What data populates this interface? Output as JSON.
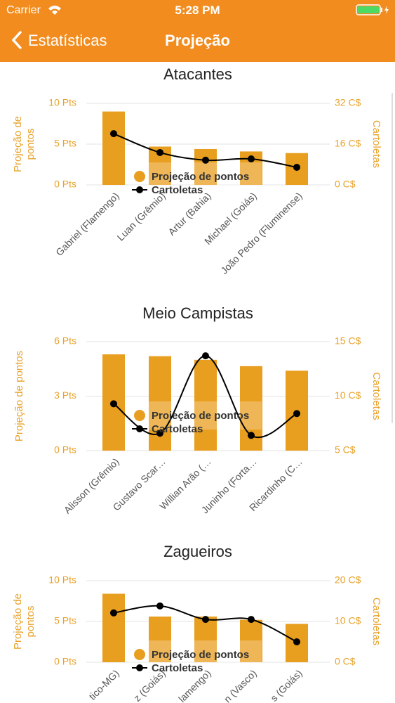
{
  "status_bar": {
    "carrier": "Carrier",
    "time": "5:28 PM"
  },
  "nav": {
    "back": "Estatísticas",
    "title": "Projeção"
  },
  "chart_data": [
    {
      "type": "bar-line",
      "title": "Atacantes",
      "categories": [
        "Gabriel (Flamengo)",
        "Luan (Grêmio)",
        "Artur (Bahia)",
        "Michael (Goiás)",
        "João Pedro (Fluminense)"
      ],
      "series": [
        {
          "name": "Projeção de pontos",
          "color": "#e89e1f",
          "values": [
            9.0,
            4.7,
            4.4,
            4.1,
            3.9
          ]
        },
        {
          "name": "Cartoletas",
          "color": "#000000",
          "axis": "y2",
          "values": [
            20.1,
            12.7,
            9.7,
            10.2,
            6.9
          ]
        }
      ],
      "y_label": "Projeção de pontos",
      "y2_label": "Cartoletas",
      "ylim": [
        0,
        10
      ],
      "yticks": [
        {
          "value": 0,
          "label": "0 Pts"
        },
        {
          "value": 5,
          "label": "5 Pts"
        },
        {
          "value": 10,
          "label": "10 Pts"
        }
      ],
      "y2lim": [
        0,
        32
      ],
      "y2ticks": [
        {
          "value": 0,
          "label": "0 C$"
        },
        {
          "value": 16,
          "label": "16 C$"
        },
        {
          "value": 32,
          "label": "32 C$"
        }
      ],
      "grid": true
    },
    {
      "type": "bar-line",
      "title": "Meio Campistas",
      "categories": [
        "Alisson (Grêmio)",
        "Gustavo Scar…",
        "Willian Arão (…",
        "Juninho (Forta…",
        "Ricardinho (C…"
      ],
      "series": [
        {
          "name": "Projeção de pontos",
          "color": "#e89e1f",
          "values": [
            5.3,
            5.2,
            5.0,
            4.65,
            4.4
          ]
        },
        {
          "name": "Cartoletas",
          "color": "#000000",
          "axis": "y2",
          "values": [
            9.3,
            6.6,
            13.7,
            6.4,
            8.4
          ]
        }
      ],
      "y_label": "Projeção de pontos",
      "y2_label": "Cartoletas",
      "ylim": [
        0,
        6
      ],
      "yticks": [
        {
          "value": 0,
          "label": "0 Pts"
        },
        {
          "value": 3,
          "label": "3 Pts"
        },
        {
          "value": 6,
          "label": "6 Pts"
        }
      ],
      "y2lim": [
        5,
        15
      ],
      "y2ticks": [
        {
          "value": 5,
          "label": "5 C$"
        },
        {
          "value": 10,
          "label": "10 C$"
        },
        {
          "value": 15,
          "label": "15 C$"
        }
      ],
      "grid": true
    },
    {
      "type": "bar-line",
      "title": "Zagueiros",
      "categories": [
        "tico-MG)",
        "z (Goiás)",
        "lamengo)",
        "n (Vasco)",
        "s (Goiás)"
      ],
      "series": [
        {
          "name": "Projeção de pontos",
          "color": "#e89e1f",
          "values": [
            8.4,
            5.6,
            5.6,
            5.2,
            4.7
          ]
        },
        {
          "name": "Cartoletas",
          "color": "#000000",
          "axis": "y2",
          "values": [
            12.1,
            13.8,
            10.5,
            10.5,
            5.0
          ]
        }
      ],
      "y_label": "Projeção de pontos",
      "y2_label": "Cartoletas",
      "ylim": [
        0,
        10
      ],
      "yticks": [
        {
          "value": 0,
          "label": "0 Pts"
        },
        {
          "value": 5,
          "label": "5 Pts"
        },
        {
          "value": 10,
          "label": "10 Pts"
        }
      ],
      "y2lim": [
        0,
        20
      ],
      "y2ticks": [
        {
          "value": 0,
          "label": "0 C$"
        },
        {
          "value": 10,
          "label": "10 C$"
        },
        {
          "value": 20,
          "label": "20 C$"
        }
      ],
      "grid": true
    }
  ]
}
